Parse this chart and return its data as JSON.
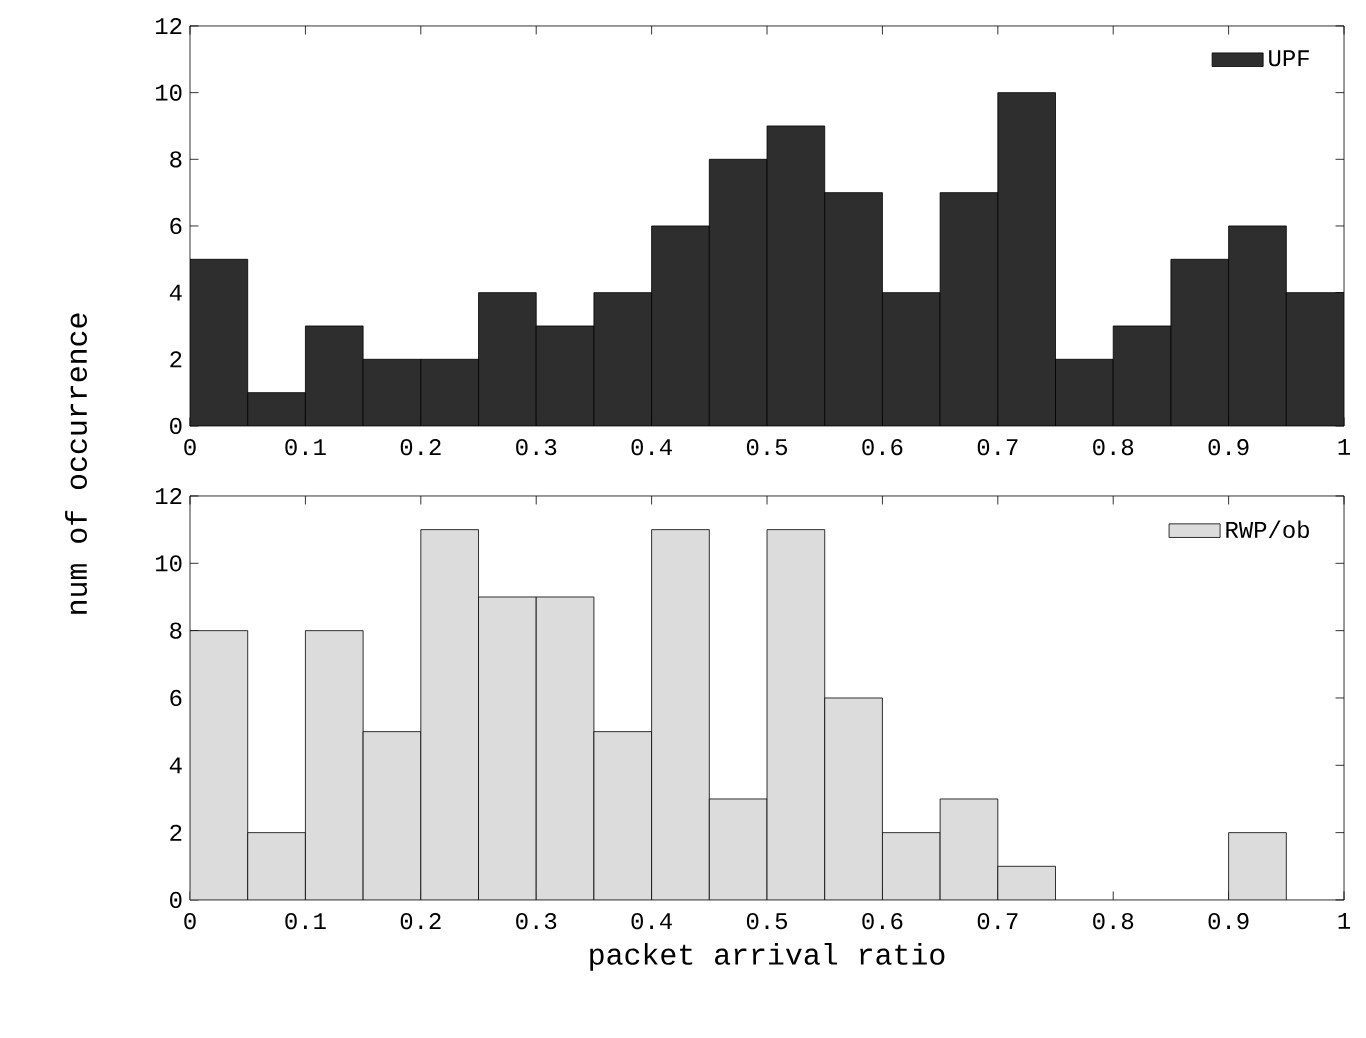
{
  "chart_data": [
    {
      "type": "histogram",
      "ylabel": "num of occurrence",
      "bins": [
        0,
        0.05,
        0.1,
        0.15,
        0.2,
        0.25,
        0.3,
        0.35,
        0.4,
        0.45,
        0.5,
        0.55,
        0.6,
        0.65,
        0.7,
        0.75,
        0.8,
        0.85,
        0.9,
        0.95,
        1
      ],
      "series": [
        {
          "name": "UPF",
          "color": "#2e2e2e",
          "values": [
            5,
            1,
            3,
            2,
            2,
            4,
            3,
            4,
            6,
            8,
            9,
            7,
            4,
            7,
            10,
            2,
            3,
            5,
            6,
            4
          ]
        }
      ],
      "xlim": [
        0,
        1
      ],
      "xticks": [
        0,
        0.1,
        0.2,
        0.3,
        0.4,
        0.5,
        0.6,
        0.7,
        0.8,
        0.9,
        1
      ],
      "ylim": [
        0,
        12
      ],
      "yticks": [
        0,
        2,
        4,
        6,
        8,
        10,
        12
      ],
      "legend": "top right"
    },
    {
      "type": "histogram",
      "xlabel": "packet arrival ratio",
      "bins": [
        0,
        0.05,
        0.1,
        0.15,
        0.2,
        0.25,
        0.3,
        0.35,
        0.4,
        0.45,
        0.5,
        0.55,
        0.6,
        0.65,
        0.7,
        0.75,
        0.8,
        0.85,
        0.9,
        0.95,
        1
      ],
      "series": [
        {
          "name": "RWP/ob",
          "color": "#dcdcdc",
          "values": [
            8,
            2,
            8,
            5,
            11,
            9,
            9,
            5,
            11,
            3,
            11,
            6,
            2,
            3,
            1,
            0,
            0,
            0,
            2,
            0
          ]
        }
      ],
      "xlim": [
        0,
        1
      ],
      "xticks": [
        0,
        0.1,
        0.2,
        0.3,
        0.4,
        0.5,
        0.6,
        0.7,
        0.8,
        0.9,
        1
      ],
      "ylim": [
        0,
        12
      ],
      "yticks": [
        0,
        2,
        4,
        6,
        8,
        10,
        12
      ],
      "legend": "top right"
    }
  ]
}
